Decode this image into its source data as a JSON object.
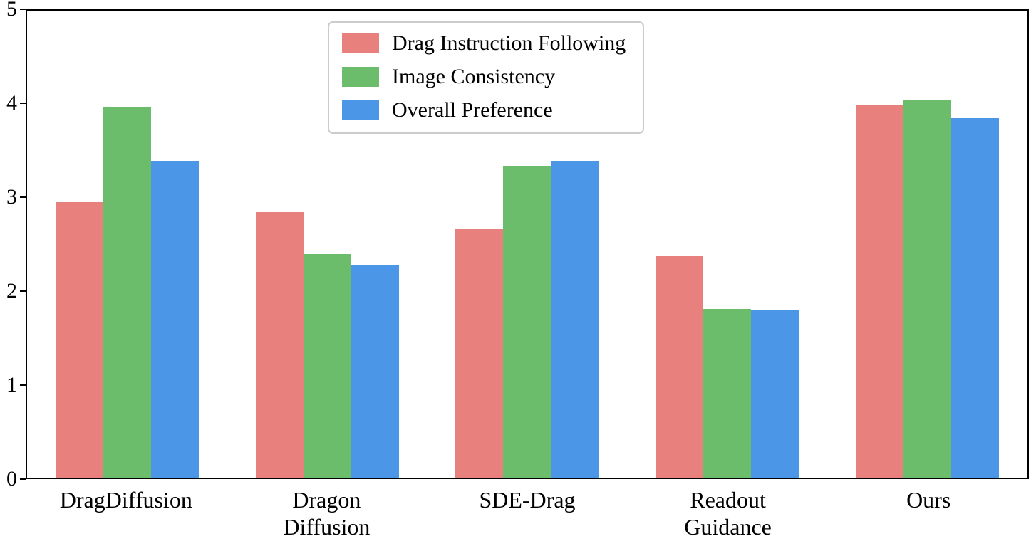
{
  "chart_data": {
    "type": "bar",
    "title": "",
    "xlabel": "",
    "ylabel": "",
    "categories": [
      "DragDiffusion",
      "Dragon\nDiffusion",
      "SDE-Drag",
      "Readout\nGuidance",
      "Ours"
    ],
    "series": [
      {
        "name": "Drag Instruction Following",
        "color": "#e8817e",
        "values": [
          2.95,
          2.84,
          2.67,
          2.38,
          3.99
        ]
      },
      {
        "name": "Image Consistency",
        "color": "#6bbc6b",
        "values": [
          3.97,
          2.39,
          3.34,
          1.81,
          4.04
        ]
      },
      {
        "name": "Overall Preference",
        "color": "#4c96e8",
        "values": [
          3.39,
          2.28,
          3.39,
          1.8,
          3.85
        ]
      }
    ],
    "ylim": [
      0,
      5
    ],
    "yticks": [
      0,
      1,
      2,
      3,
      4,
      5
    ],
    "grid": false,
    "legend_position": "upper center-left"
  }
}
